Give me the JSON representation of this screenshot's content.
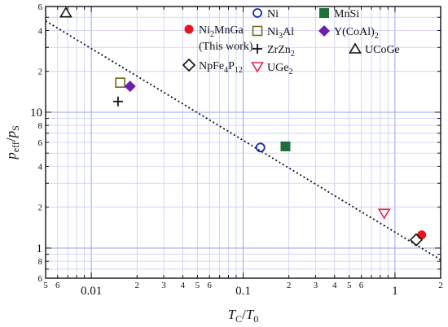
{
  "chart_data": {
    "type": "scatter",
    "x_scale": "log",
    "y_scale": "log",
    "xlim": [
      0.005,
      2
    ],
    "ylim": [
      0.6,
      60
    ],
    "grid": true,
    "xlabel": {
      "main": "T",
      "sub1": "C",
      "slash": "/",
      "main2": "T",
      "sub2": "0"
    },
    "ylabel": {
      "main": "p",
      "sub1": "eff",
      "slash": "/",
      "main2": "p",
      "sub2": "S"
    },
    "x_major_ticks": [
      {
        "value": 0.01,
        "label": "0.01"
      },
      {
        "value": 0.1,
        "label": "0.1"
      },
      {
        "value": 1,
        "label": "1"
      }
    ],
    "x_minor_ticks": [
      {
        "value": 0.005,
        "label": "5"
      },
      {
        "value": 0.006,
        "label": "6"
      },
      {
        "value": 0.02,
        "label": "2"
      },
      {
        "value": 0.03,
        "label": "3"
      },
      {
        "value": 0.04,
        "label": "4"
      },
      {
        "value": 0.05,
        "label": "5"
      },
      {
        "value": 0.06,
        "label": "6"
      },
      {
        "value": 0.2,
        "label": "2"
      },
      {
        "value": 0.3,
        "label": "3"
      },
      {
        "value": 0.4,
        "label": "4"
      },
      {
        "value": 0.5,
        "label": "5"
      },
      {
        "value": 0.6,
        "label": "6"
      },
      {
        "value": 2,
        "label": "2"
      }
    ],
    "y_major_ticks": [
      {
        "value": 1,
        "label": "1"
      },
      {
        "value": 10,
        "label": "10"
      }
    ],
    "y_minor_ticks": [
      {
        "value": 0.6,
        "label": "6"
      },
      {
        "value": 0.8,
        "label": "8"
      },
      {
        "value": 2,
        "label": "2"
      },
      {
        "value": 4,
        "label": "4"
      },
      {
        "value": 6,
        "label": "6"
      },
      {
        "value": 8,
        "label": "8"
      },
      {
        "value": 20,
        "label": "2"
      },
      {
        "value": 40,
        "label": "4"
      },
      {
        "value": 60,
        "label": "6"
      }
    ],
    "fit_line": {
      "style": "dotted",
      "x": [
        0.005,
        2
      ],
      "y": [
        47,
        0.82
      ]
    },
    "series": [
      {
        "name": "Ni2MnGa (This work)",
        "marker": "filled-circle",
        "color": "#e8141c",
        "x": [
          1.5
        ],
        "y": [
          1.25
        ]
      },
      {
        "name": "Ni",
        "marker": "open-circle",
        "color": "#1a2aa8",
        "x": [
          0.13
        ],
        "y": [
          5.5
        ]
      },
      {
        "name": "MnSi",
        "marker": "filled-square",
        "color": "#1f6e3c",
        "x": [
          0.19
        ],
        "y": [
          5.6
        ]
      },
      {
        "name": "Ni3Al",
        "marker": "open-square",
        "color": "#6b6a1a",
        "x": [
          0.0155
        ],
        "y": [
          16.5
        ]
      },
      {
        "name": "Y(CoAl)2",
        "marker": "filled-diamond",
        "color": "#6a1fb0",
        "x": [
          0.018
        ],
        "y": [
          15.5
        ]
      },
      {
        "name": "NpFe4P12",
        "marker": "open-diamond",
        "color": "#111111",
        "x": [
          1.38
        ],
        "y": [
          1.15
        ]
      },
      {
        "name": "ZrZn2",
        "marker": "plus",
        "color": "#111111",
        "x": [
          0.015
        ],
        "y": [
          12
        ]
      },
      {
        "name": "UGe2",
        "marker": "open-triangle-down",
        "color": "#e0264a",
        "x": [
          0.85
        ],
        "y": [
          1.8
        ]
      },
      {
        "name": "UCoGe",
        "marker": "open-triangle-up",
        "color": "#111111",
        "x": [
          0.0068
        ],
        "y": [
          54
        ]
      }
    ],
    "legend": {
      "placement": "top-right",
      "entries": [
        {
          "marker": "filled-circle",
          "color": "#e8141c",
          "parts": [
            [
              "Ni",
              ""
            ],
            [
              "2",
              "sub"
            ],
            [
              "MnGa",
              ""
            ]
          ]
        },
        {
          "marker": "none",
          "color": "#111111",
          "parts": [
            [
              "(This work)",
              ""
            ]
          ]
        },
        {
          "marker": "open-diamond",
          "color": "#111111",
          "parts": [
            [
              "NpFe",
              ""
            ],
            [
              "4",
              "sub"
            ],
            [
              "P",
              ""
            ],
            [
              "12",
              "sub"
            ]
          ]
        },
        {
          "marker": "open-circle",
          "color": "#1a2aa8",
          "parts": [
            [
              "Ni",
              ""
            ]
          ]
        },
        {
          "marker": "open-square",
          "color": "#6b6a1a",
          "parts": [
            [
              "Ni",
              ""
            ],
            [
              "3",
              "sub"
            ],
            [
              "Al",
              ""
            ]
          ]
        },
        {
          "marker": "plus",
          "color": "#111111",
          "parts": [
            [
              "ZrZn",
              ""
            ],
            [
              "2",
              "sub"
            ]
          ]
        },
        {
          "marker": "open-triangle-down",
          "color": "#e0264a",
          "parts": [
            [
              "UGe",
              ""
            ],
            [
              "2",
              "sub"
            ]
          ]
        },
        {
          "marker": "filled-square",
          "color": "#1f6e3c",
          "parts": [
            [
              "MnSi",
              ""
            ]
          ]
        },
        {
          "marker": "filled-diamond",
          "color": "#6a1fb0",
          "parts": [
            [
              "Y(CoAl)",
              ""
            ],
            [
              "2",
              "sub"
            ]
          ]
        },
        {
          "marker": "open-triangle-up",
          "color": "#111111",
          "parts": [
            [
              "UCoGe",
              ""
            ]
          ]
        }
      ]
    }
  }
}
